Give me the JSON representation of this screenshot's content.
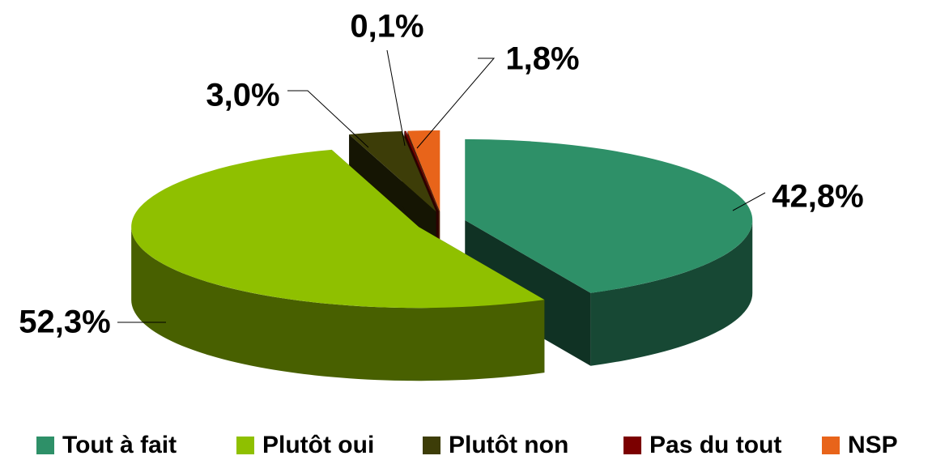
{
  "chart_data": {
    "type": "pie",
    "categories": [
      "Tout à fait",
      "Plutôt oui",
      "Plutôt non",
      "Pas du tout",
      "NSP"
    ],
    "values": [
      42.8,
      52.3,
      3.0,
      0.1,
      1.8
    ],
    "value_labels": [
      "42,8%",
      "52,3%",
      "3,0%",
      "0,1%",
      "1,8%"
    ],
    "colors": [
      "#2e9068",
      "#8fc000",
      "#3d3d08",
      "#7b0000",
      "#e8641a"
    ],
    "legend": "bottom"
  }
}
